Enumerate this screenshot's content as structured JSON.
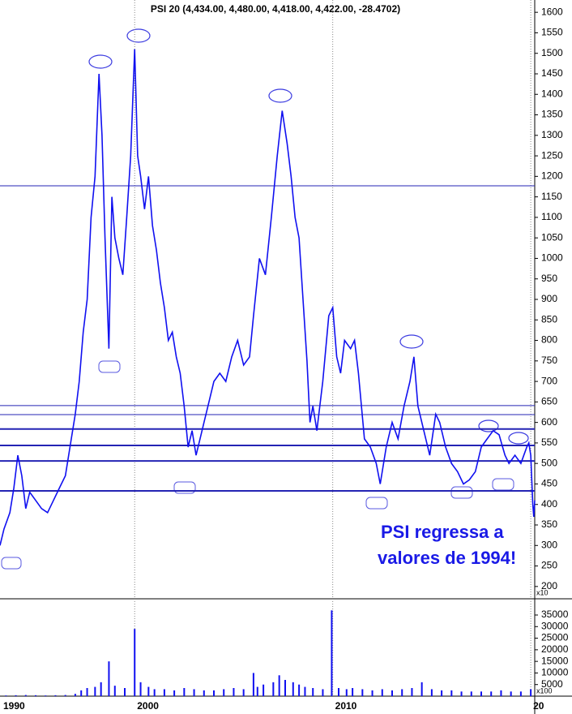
{
  "chart_data": [
    {
      "type": "line",
      "title": "PSI 20 (4,434.00, 4,480.00, 4,418.00, 4,422.00, -28.4702)",
      "annotation": [
        "PSI regressa a",
        "valores de 1994!"
      ],
      "y_multiplier": "x10",
      "xlim": [
        1993.2,
        2020.2
      ],
      "ylim": [
        170,
        1630
      ],
      "yticks": [
        1600,
        1550,
        1500,
        1450,
        1400,
        1350,
        1300,
        1250,
        1200,
        1150,
        1100,
        1050,
        1000,
        950,
        900,
        850,
        800,
        750,
        700,
        650,
        600,
        550,
        500,
        450,
        400,
        350,
        300,
        250,
        200
      ],
      "levels": [
        {
          "value": 1177,
          "width": 1
        },
        {
          "value": 641,
          "width": 1
        },
        {
          "value": 619,
          "width": 1
        },
        {
          "value": 584,
          "width": 2
        },
        {
          "value": 544,
          "width": 2
        },
        {
          "value": 506,
          "width": 2
        },
        {
          "value": 433,
          "width": 2
        }
      ],
      "level_color": "#2424b4",
      "series": [
        {
          "color": "#1010f0",
          "x": [
            1993.2,
            1993.4,
            1993.7,
            1993.9,
            1994.1,
            1994.3,
            1994.5,
            1994.7,
            1995.0,
            1995.3,
            1995.6,
            1995.9,
            1996.2,
            1996.5,
            1996.8,
            1997.0,
            1997.2,
            1997.4,
            1997.6,
            1997.8,
            1998.0,
            1998.2,
            1998.35,
            1998.5,
            1998.7,
            1998.85,
            1999.0,
            1999.2,
            1999.4,
            1999.6,
            1999.8,
            2000.0,
            2000.15,
            2000.3,
            2000.5,
            2000.7,
            2000.9,
            2001.1,
            2001.3,
            2001.5,
            2001.7,
            2001.9,
            2002.1,
            2002.3,
            2002.5,
            2002.7,
            2002.9,
            2003.1,
            2003.3,
            2003.5,
            2003.7,
            2004.0,
            2004.3,
            2004.6,
            2004.9,
            2005.2,
            2005.5,
            2005.8,
            2006.0,
            2006.3,
            2006.6,
            2006.9,
            2007.2,
            2007.45,
            2007.7,
            2007.9,
            2008.1,
            2008.3,
            2008.5,
            2008.7,
            2008.85,
            2009.0,
            2009.2,
            2009.5,
            2009.8,
            2010.0,
            2010.2,
            2010.4,
            2010.6,
            2010.9,
            2011.1,
            2011.3,
            2011.6,
            2011.9,
            2012.2,
            2012.4,
            2012.7,
            2013.0,
            2013.3,
            2013.6,
            2013.9,
            2014.1,
            2014.3,
            2014.6,
            2014.9,
            2015.2,
            2015.4,
            2015.7,
            2016.0,
            2016.3,
            2016.6,
            2016.9,
            2017.2,
            2017.5,
            2017.8,
            2018.1,
            2018.4,
            2018.7,
            2018.9,
            2019.2,
            2019.5,
            2019.8,
            2019.9,
            2020.0,
            2020.1,
            2020.15,
            2020.2
          ],
          "values": [
            300,
            340,
            380,
            440,
            520,
            470,
            390,
            430,
            410,
            390,
            380,
            410,
            440,
            470,
            560,
            620,
            700,
            820,
            900,
            1100,
            1200,
            1450,
            1300,
            1050,
            780,
            1150,
            1050,
            1000,
            960,
            1100,
            1250,
            1510,
            1250,
            1200,
            1120,
            1200,
            1080,
            1020,
            940,
            880,
            800,
            820,
            760,
            720,
            640,
            540,
            580,
            520,
            560,
            600,
            640,
            700,
            720,
            700,
            760,
            800,
            740,
            760,
            860,
            1000,
            960,
            1100,
            1250,
            1360,
            1280,
            1200,
            1100,
            1050,
            900,
            750,
            600,
            640,
            580,
            700,
            860,
            880,
            760,
            720,
            800,
            780,
            800,
            720,
            560,
            540,
            500,
            450,
            540,
            600,
            560,
            640,
            700,
            760,
            640,
            580,
            520,
            620,
            600,
            540,
            500,
            480,
            450,
            460,
            480,
            540,
            560,
            580,
            570,
            520,
            500,
            520,
            500,
            540,
            550,
            520,
            400,
            370,
            410
          ]
        }
      ]
    },
    {
      "type": "bar",
      "y_multiplier": "x100",
      "x_start_label": "1990",
      "xlim": [
        1993.2,
        2020.2
      ],
      "ylim": [
        0,
        42000
      ],
      "xticks": [
        2000,
        2010,
        {
          "value": 2020,
          "label": "20"
        }
      ],
      "yticks": [
        35000,
        30000,
        25000,
        20000,
        15000,
        10000,
        5000
      ],
      "color": "#1010f0",
      "x": [
        1993.5,
        1994.0,
        1994.5,
        1995.0,
        1995.5,
        1996.0,
        1996.5,
        1997.0,
        1997.3,
        1997.6,
        1998.0,
        1998.3,
        1998.7,
        1999.0,
        1999.5,
        2000.0,
        2000.3,
        2000.7,
        2001.0,
        2001.5,
        2002.0,
        2002.5,
        2003.0,
        2003.5,
        2004.0,
        2004.5,
        2005.0,
        2005.5,
        2006.0,
        2006.2,
        2006.5,
        2007.0,
        2007.3,
        2007.6,
        2008.0,
        2008.3,
        2008.6,
        2009.0,
        2009.5,
        2009.95,
        2010.3,
        2010.7,
        2011.0,
        2011.5,
        2012.0,
        2012.5,
        2013.0,
        2013.5,
        2014.0,
        2014.5,
        2015.0,
        2015.5,
        2016.0,
        2016.5,
        2017.0,
        2017.5,
        2018.0,
        2018.5,
        2019.0,
        2019.5,
        2020.0
      ],
      "values": [
        300,
        400,
        500,
        400,
        300,
        400,
        500,
        1000,
        2500,
        3500,
        4000,
        6000,
        15000,
        4500,
        3500,
        29000,
        6000,
        4000,
        3000,
        3000,
        2500,
        3500,
        3000,
        2500,
        2500,
        3000,
        3500,
        3000,
        10000,
        4000,
        5000,
        6000,
        9000,
        7000,
        6000,
        5000,
        4000,
        3500,
        3000,
        37000,
        3500,
        3000,
        3500,
        3000,
        2500,
        3000,
        2500,
        3000,
        3500,
        6000,
        3000,
        2500,
        2500,
        2000,
        2000,
        2000,
        2000,
        2500,
        2000,
        2000,
        3000
      ]
    }
  ]
}
